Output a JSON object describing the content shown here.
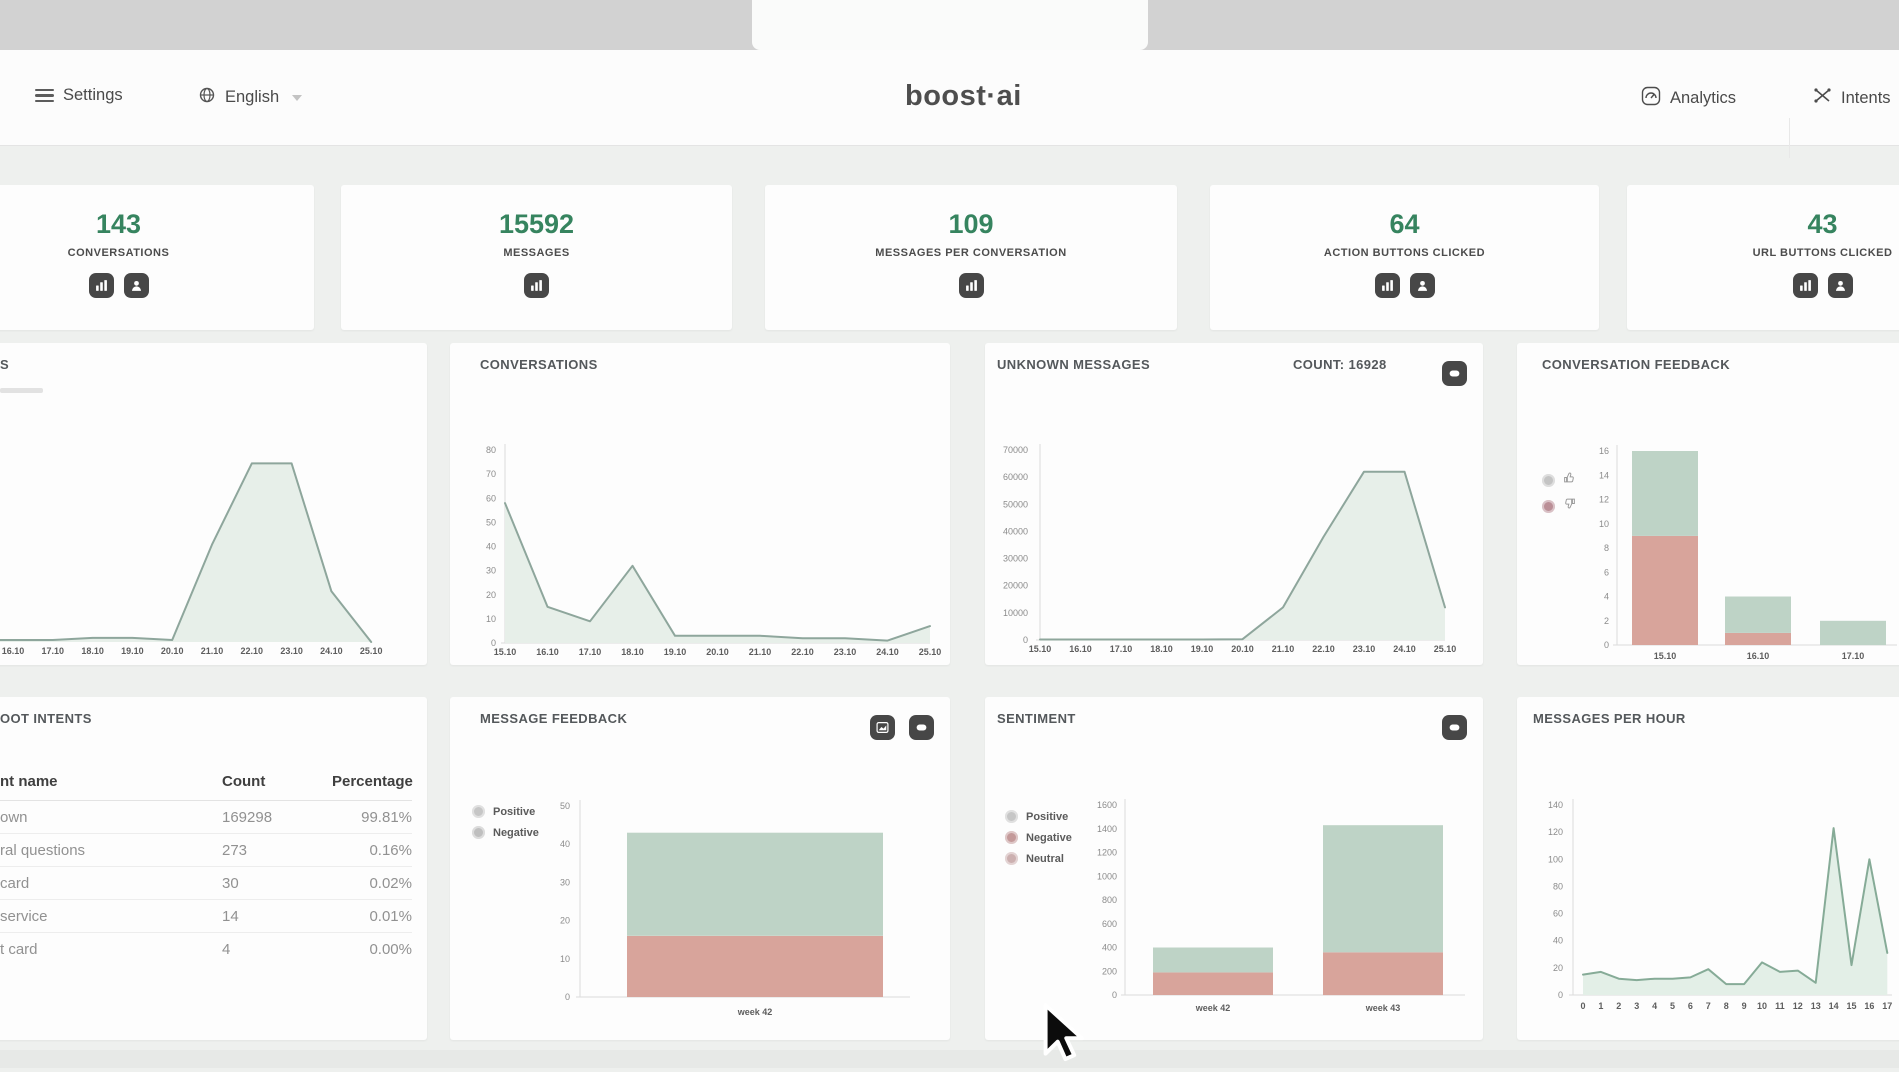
{
  "header": {
    "settings": "Settings",
    "language": "English",
    "brand": "boost·ai",
    "analytics": "Analytics",
    "intents": "Intents"
  },
  "stats": [
    {
      "value": "143",
      "label": "CONVERSATIONS",
      "icons": [
        "chart",
        "user"
      ]
    },
    {
      "value": "15592",
      "label": "MESSAGES",
      "icons": [
        "chart"
      ]
    },
    {
      "value": "109",
      "label": "MESSAGES PER CONVERSATION",
      "icons": [
        "chart"
      ]
    },
    {
      "value": "64",
      "label": "ACTION BUTTONS CLICKED",
      "icons": [
        "chart",
        "user"
      ]
    },
    {
      "value": "43",
      "label": "URL BUTTONS CLICKED",
      "icons": [
        "chart",
        "user"
      ]
    }
  ],
  "panels": {
    "messages_trend": {
      "title_fragment": "S"
    },
    "conversations": {
      "title": "CONVERSATIONS"
    },
    "unknown_messages": {
      "title": "UNKNOWN MESSAGES",
      "count_label": "COUNT: 16928",
      "icons": [
        "comment"
      ]
    },
    "conversation_feedback": {
      "title": "CONVERSATION FEEDBACK",
      "legend": [
        {
          "kind": "thumb-up",
          "color": "#c4c4c4"
        },
        {
          "kind": "thumb-down",
          "color": "#bb8f97"
        }
      ]
    },
    "root_intents": {
      "title_fragment": "OOT INTENTS",
      "columns": [
        "nt name",
        "Count",
        "Percentage"
      ],
      "rows": [
        [
          "own",
          "169298",
          "99.81%"
        ],
        [
          "ral questions",
          "273",
          "0.16%"
        ],
        [
          "card",
          "30",
          "0.02%"
        ],
        [
          "service",
          "14",
          "0.01%"
        ],
        [
          "t card",
          "4",
          "0.00%"
        ]
      ]
    },
    "message_feedback": {
      "title": "MESSAGE FEEDBACK",
      "icons": [
        "imgchart",
        "comment"
      ],
      "legend": [
        {
          "label": "Positive",
          "color": "#c6c6c6"
        },
        {
          "label": "Negative",
          "color": "#bfbfbf"
        }
      ]
    },
    "sentiment": {
      "title": "SENTIMENT",
      "icons": [
        "comment"
      ],
      "legend": [
        {
          "label": "Positive",
          "color": "#c6c6c6"
        },
        {
          "label": "Negative",
          "color": "#c49a9a"
        },
        {
          "label": "Neutral",
          "color": "#ccb0b0"
        }
      ]
    },
    "messages_per_hour": {
      "title": "MESSAGES PER HOUR"
    }
  },
  "chart_data": [
    {
      "id": "messages_trend",
      "type": "area",
      "x": [
        "16.10",
        "17.10",
        "18.10",
        "19.10",
        "20.10",
        "21.10",
        "22.10",
        "23.10",
        "24.10",
        "25.10"
      ],
      "values": [
        1,
        1,
        2,
        2,
        1,
        48,
        88,
        88,
        25,
        0
      ],
      "lead_value": 1,
      "ylim": [
        0,
        100
      ],
      "fill": "#e7efe9",
      "stroke": "#8ea69c"
    },
    {
      "id": "conversations",
      "type": "area",
      "x": [
        "15.10",
        "16.10",
        "17.10",
        "18.10",
        "19.10",
        "20.10",
        "21.10",
        "22.10",
        "23.10",
        "24.10",
        "25.10"
      ],
      "values": [
        58,
        15,
        9,
        32,
        3,
        3,
        3,
        2,
        2,
        1,
        7
      ],
      "ylim": [
        0,
        80
      ],
      "yticks": [
        "0",
        "10",
        "20",
        "30",
        "40",
        "50",
        "60",
        "70",
        "80"
      ],
      "fill": "#e7efe9",
      "stroke": "#8ea69c"
    },
    {
      "id": "unknown_messages",
      "type": "area",
      "x": [
        "15.10",
        "16.10",
        "17.10",
        "18.10",
        "19.10",
        "20.10",
        "21.10",
        "22.10",
        "23.10",
        "24.10",
        "25.10"
      ],
      "values": [
        200,
        200,
        200,
        200,
        200,
        300,
        12000,
        38000,
        62000,
        62000,
        12000
      ],
      "ylim": [
        0,
        70000
      ],
      "yticks": [
        "0",
        "10000",
        "20000",
        "30000",
        "40000",
        "50000",
        "60000",
        "70000"
      ],
      "fill": "#e7efe9",
      "stroke": "#8ea69c"
    },
    {
      "id": "conversation_feedback",
      "type": "stacked-bar",
      "x": [
        "15.10",
        "16.10",
        "17.10"
      ],
      "series": [
        {
          "name": "Negative",
          "color": "#d8a49b",
          "values": [
            9,
            1,
            0
          ]
        },
        {
          "name": "Positive",
          "color": "#bed3c6",
          "values": [
            7,
            3,
            2
          ]
        }
      ],
      "ylim": [
        0,
        16
      ],
      "yticks": [
        "0",
        "2",
        "4",
        "6",
        "8",
        "10",
        "12",
        "14",
        "16"
      ]
    },
    {
      "id": "message_feedback",
      "type": "stacked-bar",
      "x": [
        "week 42"
      ],
      "series": [
        {
          "name": "Negative",
          "color": "#d8a49b",
          "values": [
            16
          ]
        },
        {
          "name": "Positive",
          "color": "#bed3c6",
          "values": [
            27
          ]
        }
      ],
      "ylim": [
        0,
        50
      ],
      "yticks": [
        "0",
        "10",
        "20",
        "30",
        "40",
        "50"
      ]
    },
    {
      "id": "sentiment",
      "type": "stacked-bar",
      "x": [
        "week 42",
        "week 43"
      ],
      "series": [
        {
          "name": "Negative",
          "color": "#d8a49b",
          "values": [
            190,
            360
          ]
        },
        {
          "name": "Positive",
          "color": "#bed3c6",
          "values": [
            210,
            1070
          ]
        }
      ],
      "ylim": [
        0,
        1600
      ],
      "yticks": [
        "0",
        "200",
        "400",
        "600",
        "800",
        "1000",
        "1200",
        "1400",
        "1600"
      ]
    },
    {
      "id": "messages_per_hour",
      "type": "area",
      "x": [
        "0",
        "1",
        "2",
        "3",
        "4",
        "5",
        "6",
        "7",
        "8",
        "9",
        "10",
        "11",
        "12",
        "13",
        "14",
        "15",
        "16",
        "17"
      ],
      "values": [
        15,
        17,
        12,
        11,
        12,
        12,
        13,
        19,
        8,
        8,
        24,
        17,
        18,
        9,
        123,
        22,
        100,
        31
      ],
      "ylim": [
        0,
        140
      ],
      "yticks": [
        "0",
        "20",
        "40",
        "60",
        "80",
        "100",
        "120",
        "140"
      ],
      "fill": "#e3efe7",
      "stroke": "#86ab97"
    }
  ]
}
